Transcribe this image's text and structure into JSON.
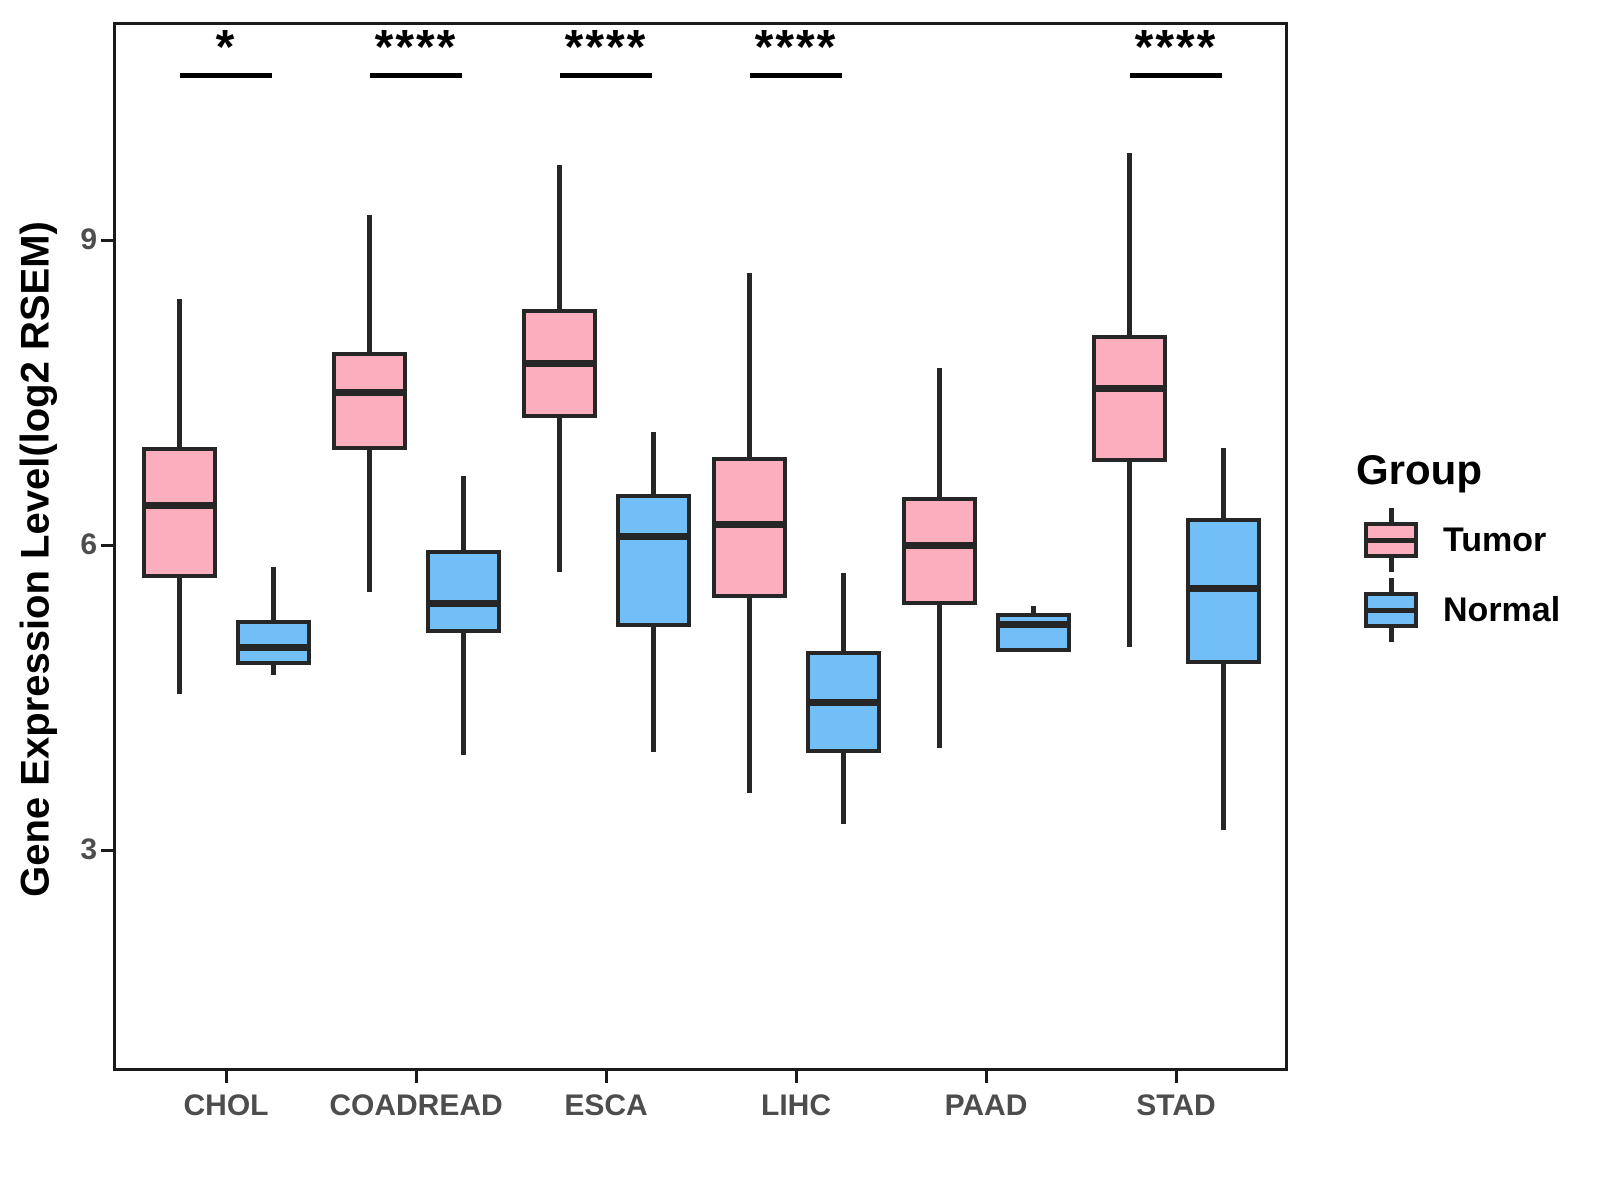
{
  "figure": {
    "legend": {
      "title": "Group",
      "items": [
        {
          "label": "Tumor",
          "color": "#FBAEBE"
        },
        {
          "label": "Normal",
          "color": "#72BEF6"
        }
      ]
    },
    "colors": {
      "tumor_fill": "#FBAEBE",
      "normal_fill": "#72BEF6",
      "box_stroke": "#262626",
      "axis_line": "#1a1a1a",
      "axis_text": "#4d4d4d",
      "significance": "#000000"
    }
  },
  "chart_data": {
    "type": "boxplot",
    "title": "",
    "xlabel": "",
    "ylabel": "Gene Expression Level(log2 RSEM)",
    "y_ticks": [
      9,
      6,
      3
    ],
    "ylim": [
      0.8,
      11.1
    ],
    "grid": false,
    "legend_position": "right",
    "categories": [
      "CHOL",
      "COADREAD",
      "ESCA",
      "LIHC",
      "PAAD",
      "STAD"
    ],
    "groups": [
      "Tumor",
      "Normal"
    ],
    "significance": [
      "*",
      "****",
      "****",
      "****",
      null,
      "****"
    ],
    "series": [
      {
        "name": "Tumor",
        "color": "#FBAEBE",
        "boxes": [
          {
            "category": "CHOL",
            "min": 4.53,
            "q1": 5.68,
            "median": 6.39,
            "q3": 6.96,
            "max": 8.42
          },
          {
            "category": "COADREAD",
            "min": 5.54,
            "q1": 6.93,
            "median": 7.5,
            "q3": 7.9,
            "max": 9.25
          },
          {
            "category": "ESCA",
            "min": 5.73,
            "q1": 7.25,
            "median": 7.79,
            "q3": 8.32,
            "max": 9.74
          },
          {
            "category": "LIHC",
            "min": 3.56,
            "q1": 5.48,
            "median": 6.2,
            "q3": 6.87,
            "max": 8.68
          },
          {
            "category": "PAAD",
            "min": 4.0,
            "q1": 5.41,
            "median": 6.0,
            "q3": 6.47,
            "max": 7.74
          },
          {
            "category": "STAD",
            "min": 5.0,
            "q1": 6.82,
            "median": 7.54,
            "q3": 8.07,
            "max": 9.86
          }
        ]
      },
      {
        "name": "Normal",
        "color": "#72BEF6",
        "boxes": [
          {
            "category": "CHOL",
            "min": 4.72,
            "q1": 4.82,
            "median": 4.99,
            "q3": 5.26,
            "max": 5.78
          },
          {
            "category": "COADREAD",
            "min": 3.93,
            "q1": 5.13,
            "median": 5.42,
            "q3": 5.95,
            "max": 6.68
          },
          {
            "category": "ESCA",
            "min": 3.96,
            "q1": 5.19,
            "median": 6.08,
            "q3": 6.5,
            "max": 7.11
          },
          {
            "category": "LIHC",
            "min": 3.26,
            "q1": 3.95,
            "median": 4.45,
            "q3": 4.96,
            "max": 5.72
          },
          {
            "category": "PAAD",
            "min": 4.95,
            "q1": 4.95,
            "median": 5.22,
            "q3": 5.33,
            "max": 5.4
          },
          {
            "category": "STAD",
            "min": 3.2,
            "q1": 4.83,
            "median": 5.57,
            "q3": 6.27,
            "max": 6.95
          }
        ]
      }
    ]
  }
}
